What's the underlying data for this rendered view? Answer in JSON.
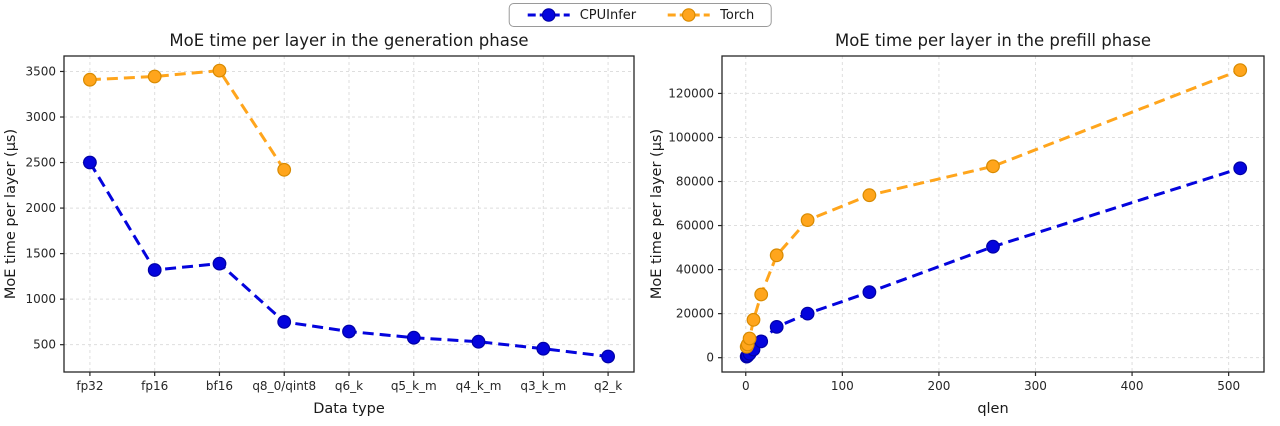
{
  "colors": {
    "cpuinfer": "#0404dd",
    "cpuinfer_edge": "#0000a6",
    "torch": "#ffa51c",
    "torch_edge": "#d88a00"
  },
  "legend": {
    "entries": [
      {
        "label": "CPUInfer",
        "color": "#0404dd",
        "edge": "#0000a6"
      },
      {
        "label": "Torch",
        "color": "#ffa51c",
        "edge": "#d88a00"
      }
    ],
    "position": "top-center"
  },
  "chart_data": [
    {
      "type": "line",
      "title": "MoE time per layer in the generation phase",
      "xlabel": "Data type",
      "ylabel": "MoE time per layer (µs)",
      "categories": [
        "fp32",
        "fp16",
        "bf16",
        "q8_0/qint8",
        "q6_k",
        "q5_k_m",
        "q4_k_m",
        "q3_k_m",
        "q2_k"
      ],
      "xlim": [
        -0.4,
        8.4
      ],
      "ylim": [
        200,
        3670
      ],
      "yticks": [
        500,
        1000,
        1500,
        2000,
        2500,
        3000,
        3500
      ],
      "grid": true,
      "line_style": "dashed",
      "marker": "circle",
      "series": [
        {
          "name": "CPUInfer",
          "color": "#0404dd",
          "edge": "#0000a6",
          "values": [
            2500,
            1320,
            1390,
            750,
            645,
            577,
            533,
            456,
            370
          ]
        },
        {
          "name": "Torch",
          "color": "#ffa51c",
          "edge": "#d88a00",
          "values": [
            3410,
            3445,
            3510,
            2420,
            null,
            null,
            null,
            null,
            null
          ]
        }
      ]
    },
    {
      "type": "line",
      "title": "MoE time per layer in the prefill phase",
      "xlabel": "qlen",
      "ylabel": "MoE time per layer (µs)",
      "x": [
        1,
        2,
        4,
        8,
        16,
        32,
        64,
        128,
        256,
        512
      ],
      "xlim": [
        -24.6,
        536.6
      ],
      "xticks": [
        0,
        100,
        200,
        300,
        400,
        500
      ],
      "ylim": [
        -6500,
        137000
      ],
      "yticks": [
        0,
        20000,
        40000,
        60000,
        80000,
        100000,
        120000
      ],
      "grid": true,
      "line_style": "dashed",
      "marker": "circle",
      "series": [
        {
          "name": "CPUInfer",
          "color": "#0404dd",
          "edge": "#0000a6",
          "values": [
            500,
            900,
            1800,
            3700,
            7400,
            14000,
            20000,
            29800,
            50400,
            86000
          ]
        },
        {
          "name": "Torch",
          "color": "#ffa51c",
          "edge": "#d88a00",
          "values": [
            5000,
            6000,
            8700,
            17200,
            28700,
            46500,
            62500,
            73800,
            86900,
            130600
          ]
        }
      ]
    }
  ]
}
